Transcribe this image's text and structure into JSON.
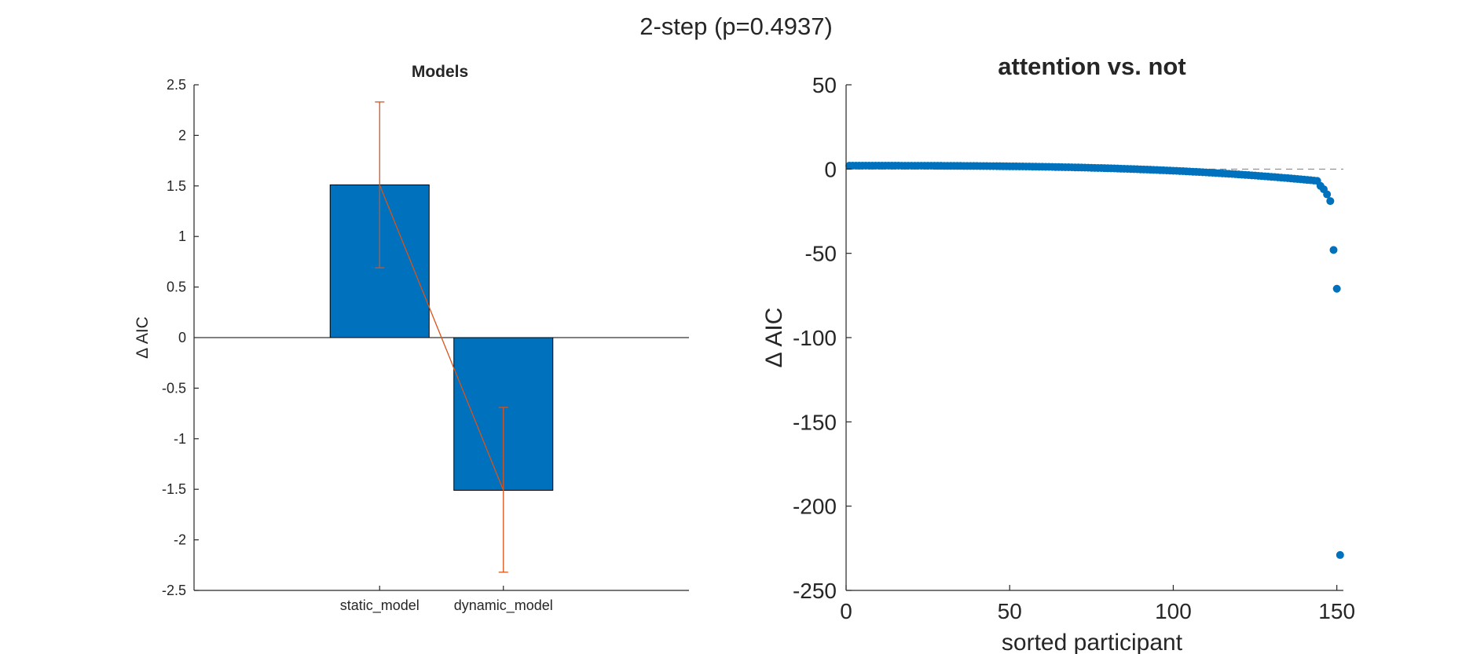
{
  "figure": {
    "suptitle": "2-step (p=0.4937)"
  },
  "chart_data": [
    {
      "type": "bar",
      "title": "Models",
      "xlabel": "",
      "ylabel": "Δ AIC",
      "categories": [
        "static_model",
        "dynamic_model"
      ],
      "values": [
        1.51,
        -1.51
      ],
      "error_low": [
        0.69,
        -2.32
      ],
      "error_high": [
        2.33,
        -0.69
      ],
      "ylim": [
        -2.5,
        2.5
      ],
      "yticks": [
        2.5,
        2,
        1.5,
        1,
        0.5,
        0,
        -0.5,
        -1,
        -1.5,
        -2,
        -2.5
      ],
      "ytick_labels": [
        "2.5",
        "2",
        "1.5",
        "1",
        "0.5",
        "0",
        "-0.5",
        "-1",
        "-1.5",
        "-2",
        "-2.5"
      ],
      "bar_color": "#0072BD",
      "error_color": "#D95319",
      "grid": false
    },
    {
      "type": "scatter",
      "title": "attention vs. not",
      "xlabel": "sorted participant",
      "ylabel": "Δ AIC",
      "xlim": [
        0,
        152
      ],
      "ylim": [
        -250,
        50
      ],
      "xticks": [
        0,
        50,
        100,
        150
      ],
      "xtick_labels": [
        "0",
        "50",
        "100",
        "150"
      ],
      "yticks": [
        50,
        0,
        -50,
        -100,
        -150,
        -200,
        -250
      ],
      "ytick_labels": [
        "50",
        "0",
        "-50",
        "-100",
        "-150",
        "-200",
        "-250"
      ],
      "n_points": 151,
      "tail_values": [
        -10,
        -12,
        -15,
        -19,
        -48,
        -71,
        -229
      ],
      "reference_line_y": 0,
      "point_color": "#0072BD",
      "grid": false
    }
  ]
}
